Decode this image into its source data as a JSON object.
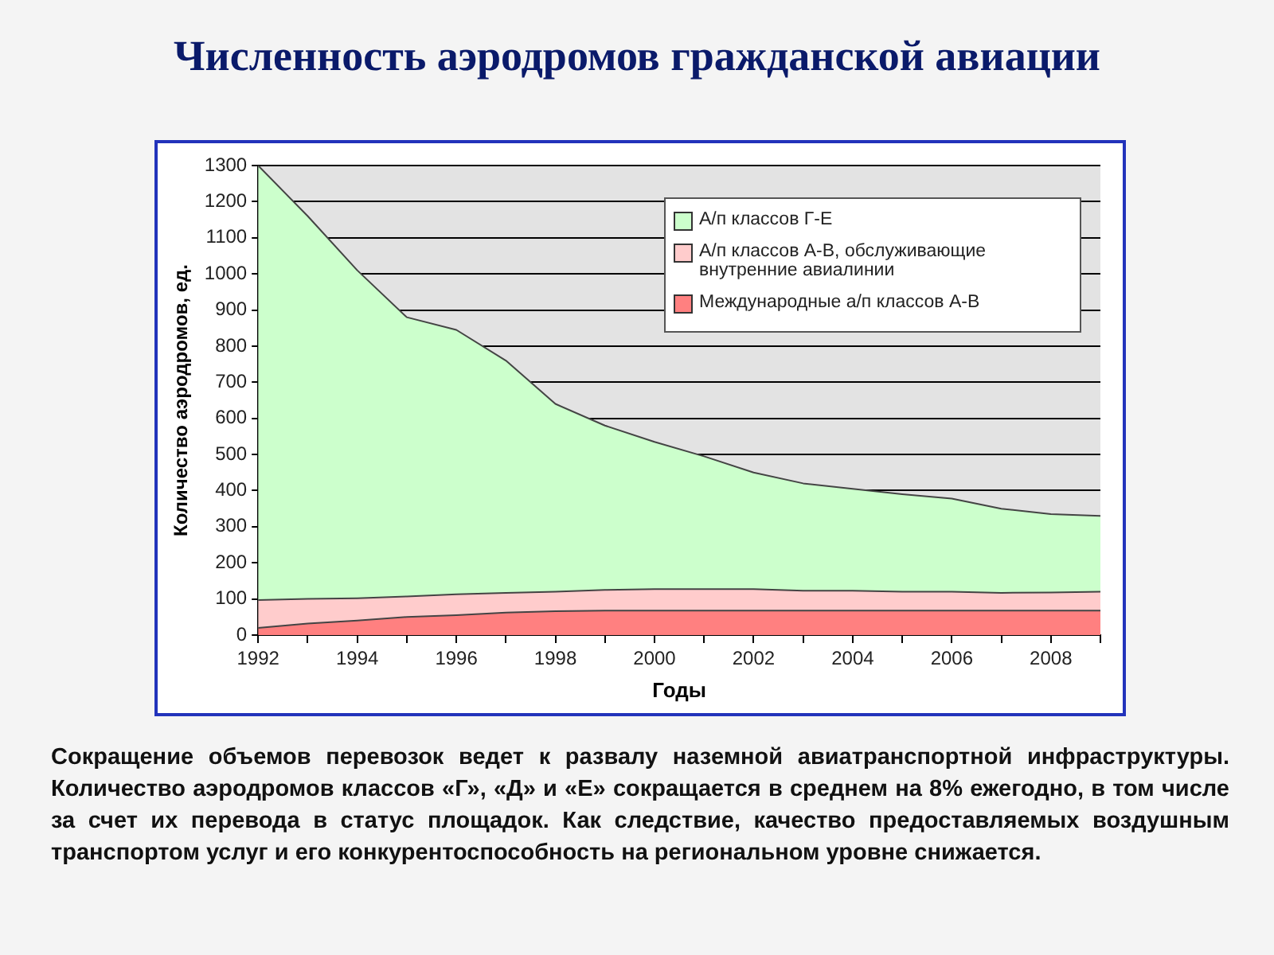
{
  "chart_data": {
    "type": "area",
    "title": "Численность аэродромов гражданской авиации",
    "xlabel": "Годы",
    "ylabel": "Количество аэродромов, ед.",
    "stacked": true,
    "x": [
      1992,
      1993,
      1994,
      1995,
      1996,
      1997,
      1998,
      1999,
      2000,
      2001,
      2002,
      2003,
      2004,
      2005,
      2006,
      2007,
      2008,
      2009
    ],
    "series": [
      {
        "name": "Международные а/п классов А-В",
        "color": "#ff8080",
        "values": [
          20,
          32,
          40,
          50,
          55,
          62,
          66,
          68,
          68,
          68,
          68,
          68,
          68,
          68,
          68,
          68,
          68,
          68
        ]
      },
      {
        "name": "А/п классов А-В, обслуживающие внутренние авиалинии",
        "color": "#ffcccc",
        "values": [
          77,
          68,
          62,
          57,
          58,
          55,
          54,
          57,
          59,
          59,
          59,
          55,
          55,
          52,
          52,
          49,
          50,
          52
        ]
      },
      {
        "name": "А/п классов Г-Е",
        "color": "#ccffcc",
        "values": [
          1203,
          1060,
          908,
          773,
          732,
          643,
          520,
          455,
          408,
          368,
          323,
          297,
          282,
          270,
          258,
          233,
          217,
          210
        ]
      }
    ],
    "xlim": [
      1992,
      2009
    ],
    "xticks": [
      1992,
      {
        "value": 1993,
        "label": null
      },
      1994,
      {
        "value": 1995,
        "label": null
      },
      1996,
      {
        "value": 1997,
        "label": null
      },
      1998,
      {
        "value": 1999,
        "label": null
      },
      2000,
      {
        "value": 2001,
        "label": null
      },
      2002,
      {
        "value": 2003,
        "label": null
      },
      2004,
      {
        "value": 2005,
        "label": null
      },
      2006,
      {
        "value": 2007,
        "label": null
      },
      2008,
      {
        "value": 2009,
        "label": null
      }
    ],
    "ylim": [
      0,
      1300
    ],
    "yticks": [
      0,
      100,
      200,
      300,
      400,
      500,
      600,
      700,
      800,
      900,
      1000,
      1100,
      1200,
      1300
    ],
    "grid": "y",
    "legend": "top right",
    "line_style": "solid",
    "marker": "none",
    "annotations": [
      "Сокращение объемов перевозок ведет к развалу наземной авиатранспортной инфраструктуры. Количество аэродромов классов «Г», «Д» и «Е» сокращается в среднем на 8% ежегодно, в том числе за счет их перевода в статус площадок. Как следствие, качество предоставляемых воздушным транспортом услуг и его конкурентоспособность на региональном уровне снижается."
    ]
  }
}
